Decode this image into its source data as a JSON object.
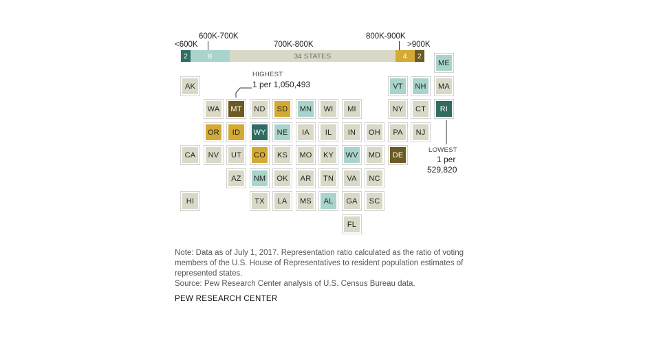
{
  "legend": {
    "labels": {
      "lt600": "<600K",
      "b600_700": "600K-700K",
      "b700_800": "700K-800K",
      "b800_900": "800K-900K",
      "gt900": ">900K"
    },
    "segments": [
      {
        "key": "lt600",
        "count": 2,
        "label": "2",
        "color": "#2f6c62",
        "text_color": "#ffffff"
      },
      {
        "key": "b600_700",
        "count": 8,
        "label": "8",
        "color": "#a9d4cc",
        "text_color": "#ffffff"
      },
      {
        "key": "b700_800",
        "count": 34,
        "label": "34 STATES",
        "color": "#dad8c6",
        "text_color": "#6b6b6b"
      },
      {
        "key": "b800_900",
        "count": 4,
        "label": "4",
        "color": "#d4aa34",
        "text_color": "#ffffff"
      },
      {
        "key": "gt900",
        "count": 2,
        "label": "2",
        "color": "#6b5a22",
        "text_color": "#ffffff"
      }
    ]
  },
  "colors": {
    "lt600": "#2f6c62",
    "b600_700": "#a9d4cc",
    "b700_800": "#dad8c6",
    "b800_900": "#d4aa34",
    "gt900": "#6b5a22"
  },
  "states": [
    {
      "abbr": "ME",
      "col": 11,
      "row": 0,
      "cat": "b600_700"
    },
    {
      "abbr": "AK",
      "col": 0,
      "row": 1,
      "cat": "b700_800"
    },
    {
      "abbr": "VT",
      "col": 9,
      "row": 1,
      "cat": "b600_700"
    },
    {
      "abbr": "NH",
      "col": 10,
      "row": 1,
      "cat": "b600_700"
    },
    {
      "abbr": "MA",
      "col": 11,
      "row": 1,
      "cat": "b700_800"
    },
    {
      "abbr": "WA",
      "col": 1,
      "row": 2,
      "cat": "b700_800"
    },
    {
      "abbr": "MT",
      "col": 2,
      "row": 2,
      "cat": "gt900"
    },
    {
      "abbr": "ND",
      "col": 3,
      "row": 2,
      "cat": "b700_800"
    },
    {
      "abbr": "SD",
      "col": 4,
      "row": 2,
      "cat": "b800_900"
    },
    {
      "abbr": "MN",
      "col": 5,
      "row": 2,
      "cat": "b600_700"
    },
    {
      "abbr": "WI",
      "col": 6,
      "row": 2,
      "cat": "b700_800"
    },
    {
      "abbr": "MI",
      "col": 7,
      "row": 2,
      "cat": "b700_800"
    },
    {
      "abbr": "NY",
      "col": 9,
      "row": 2,
      "cat": "b700_800"
    },
    {
      "abbr": "CT",
      "col": 10,
      "row": 2,
      "cat": "b700_800"
    },
    {
      "abbr": "RI",
      "col": 11,
      "row": 2,
      "cat": "lt600"
    },
    {
      "abbr": "OR",
      "col": 1,
      "row": 3,
      "cat": "b800_900"
    },
    {
      "abbr": "ID",
      "col": 2,
      "row": 3,
      "cat": "b800_900"
    },
    {
      "abbr": "WY",
      "col": 3,
      "row": 3,
      "cat": "lt600"
    },
    {
      "abbr": "NE",
      "col": 4,
      "row": 3,
      "cat": "b600_700"
    },
    {
      "abbr": "IA",
      "col": 5,
      "row": 3,
      "cat": "b700_800"
    },
    {
      "abbr": "IL",
      "col": 6,
      "row": 3,
      "cat": "b700_800"
    },
    {
      "abbr": "IN",
      "col": 7,
      "row": 3,
      "cat": "b700_800"
    },
    {
      "abbr": "OH",
      "col": 8,
      "row": 3,
      "cat": "b700_800"
    },
    {
      "abbr": "PA",
      "col": 9,
      "row": 3,
      "cat": "b700_800"
    },
    {
      "abbr": "NJ",
      "col": 10,
      "row": 3,
      "cat": "b700_800"
    },
    {
      "abbr": "CA",
      "col": 0,
      "row": 4,
      "cat": "b700_800"
    },
    {
      "abbr": "NV",
      "col": 1,
      "row": 4,
      "cat": "b700_800"
    },
    {
      "abbr": "UT",
      "col": 2,
      "row": 4,
      "cat": "b700_800"
    },
    {
      "abbr": "CO",
      "col": 3,
      "row": 4,
      "cat": "b800_900"
    },
    {
      "abbr": "KS",
      "col": 4,
      "row": 4,
      "cat": "b700_800"
    },
    {
      "abbr": "MO",
      "col": 5,
      "row": 4,
      "cat": "b700_800"
    },
    {
      "abbr": "KY",
      "col": 6,
      "row": 4,
      "cat": "b700_800"
    },
    {
      "abbr": "WV",
      "col": 7,
      "row": 4,
      "cat": "b600_700"
    },
    {
      "abbr": "MD",
      "col": 8,
      "row": 4,
      "cat": "b700_800"
    },
    {
      "abbr": "DE",
      "col": 9,
      "row": 4,
      "cat": "gt900"
    },
    {
      "abbr": "AZ",
      "col": 2,
      "row": 5,
      "cat": "b700_800"
    },
    {
      "abbr": "NM",
      "col": 3,
      "row": 5,
      "cat": "b600_700"
    },
    {
      "abbr": "OK",
      "col": 4,
      "row": 5,
      "cat": "b700_800"
    },
    {
      "abbr": "AR",
      "col": 5,
      "row": 5,
      "cat": "b700_800"
    },
    {
      "abbr": "TN",
      "col": 6,
      "row": 5,
      "cat": "b700_800"
    },
    {
      "abbr": "VA",
      "col": 7,
      "row": 5,
      "cat": "b700_800"
    },
    {
      "abbr": "NC",
      "col": 8,
      "row": 5,
      "cat": "b700_800"
    },
    {
      "abbr": "HI",
      "col": 0,
      "row": 6,
      "cat": "b700_800"
    },
    {
      "abbr": "TX",
      "col": 3,
      "row": 6,
      "cat": "b700_800"
    },
    {
      "abbr": "LA",
      "col": 4,
      "row": 6,
      "cat": "b700_800"
    },
    {
      "abbr": "MS",
      "col": 5,
      "row": 6,
      "cat": "b700_800"
    },
    {
      "abbr": "AL",
      "col": 6,
      "row": 6,
      "cat": "b600_700"
    },
    {
      "abbr": "GA",
      "col": 7,
      "row": 6,
      "cat": "b700_800"
    },
    {
      "abbr": "SC",
      "col": 8,
      "row": 6,
      "cat": "b700_800"
    },
    {
      "abbr": "FL",
      "col": 7,
      "row": 7,
      "cat": "b700_800"
    }
  ],
  "callouts": {
    "highest": {
      "title": "HIGHEST",
      "value": "1 per 1,050,493",
      "state": "MT"
    },
    "lowest": {
      "title": "LOWEST",
      "value_line1": "1 per",
      "value_line2": "529,820",
      "state": "RI"
    }
  },
  "note": {
    "line1": "Note: Data as of July 1, 2017. Representation ratio calculated as the ratio of voting",
    "line2": "members of the U.S. House of Representatives to resident population estimates of",
    "line3": "represented states.",
    "source": "Source: Pew Research Center analysis of U.S. Census Bureau data."
  },
  "brand": "PEW RESEARCH CENTER"
}
